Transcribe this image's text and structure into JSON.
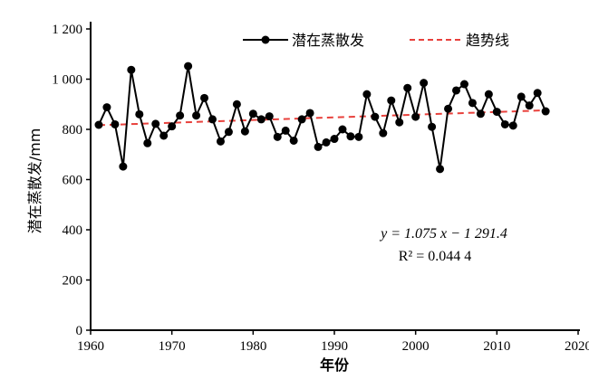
{
  "chart_data": {
    "type": "line",
    "title": "",
    "xlabel": "年份",
    "ylabel": "潜在蒸散发/mm",
    "xlim": [
      1960,
      2020
    ],
    "ylim": [
      0,
      1200
    ],
    "x_ticks": [
      1960,
      1970,
      1980,
      1990,
      2000,
      2010,
      2020
    ],
    "x_tick_labels": [
      "1960",
      "1970",
      "1980",
      "1990",
      "2000",
      "2010",
      "2020"
    ],
    "y_ticks": [
      0,
      200,
      400,
      600,
      800,
      1000,
      1200
    ],
    "y_tick_labels": [
      "0",
      "200",
      "400",
      "600",
      "800",
      "1 000",
      "1 200"
    ],
    "legend": {
      "placement": "top-right",
      "entries": [
        "潜在蒸散发",
        "趋势线"
      ]
    },
    "x": [
      1961,
      1962,
      1963,
      1964,
      1965,
      1966,
      1967,
      1968,
      1969,
      1970,
      1971,
      1972,
      1973,
      1974,
      1975,
      1976,
      1977,
      1978,
      1979,
      1980,
      1981,
      1982,
      1983,
      1984,
      1985,
      1986,
      1987,
      1988,
      1989,
      1990,
      1991,
      1992,
      1993,
      1994,
      1995,
      1996,
      1997,
      1998,
      1999,
      2000,
      2001,
      2002,
      2003,
      2004,
      2005,
      2006,
      2007,
      2008,
      2009,
      2010,
      2011,
      2012,
      2013,
      2014,
      2015,
      2016
    ],
    "series": [
      {
        "name": "潜在蒸散发",
        "color": "#000000",
        "values": [
          818,
          888,
          820,
          652,
          1037,
          860,
          745,
          822,
          775,
          812,
          855,
          1052,
          855,
          925,
          840,
          752,
          790,
          900,
          792,
          862,
          840,
          852,
          770,
          795,
          755,
          840,
          865,
          730,
          748,
          762,
          800,
          772,
          770,
          940,
          850,
          785,
          915,
          828,
          965,
          850,
          985,
          810,
          642,
          882,
          955,
          980,
          905,
          862,
          940,
          870,
          820,
          815,
          930,
          895,
          945,
          872
        ]
      },
      {
        "name": "趋势线",
        "color": "#e8413c",
        "slope": 1.075,
        "intercept": -1291.4
      }
    ],
    "annotations": {
      "equation": "y = 1.075 x − 1 291.4",
      "r2": "R² = 0.044 4"
    }
  }
}
